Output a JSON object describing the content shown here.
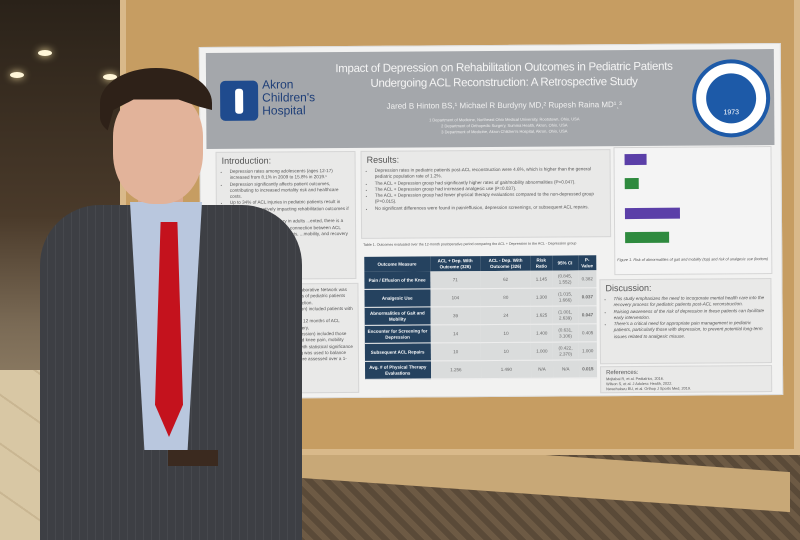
{
  "poster": {
    "title_line1": "Impact of Depression on Rehabilitation Outcomes in Pediatric Patients",
    "title_line2": "Undergoing ACL Reconstruction: A Retrospective Study",
    "authors": "Jared B Hinton BS,¹ Michael R Burdyny MD,² Rupesh Raina MD¹ˎ³",
    "affiliations": [
      "1 Department of Medicine, Northeast Ohio Medical University, Rootstown, Ohio, USA",
      "2 Department of Orthopedic Surgery, Summa Health, Akron, Ohio, USA",
      "3 Department of Medicine, Akron Children's Hospital, Akron, Ohio, USA"
    ],
    "logo_left": "Akron Children's Hospital",
    "logo_right": "NORTHEAST OHIO MEDICAL UNIVERSITY 1973",
    "seal_year": "1973",
    "introduction": {
      "heading": "Introduction:",
      "bullets": [
        "Depression rates among adolescents (ages 12-17) increased from 8.1% in 2009 to 15.8% in 2019.¹",
        "Depression significantly affects patient outcomes, contributing to increased mortality risk and healthcare costs.",
        "Up to 34% of ACL injuries in pediatric patients result in depression, negatively impacting rehabilitation outcomes if left unaddressed.²",
        "...of depression on recovery in adults ...ented, there is a lack of research in ...ates the connection between ACL ...depression in pediatric patients, ...mobility, and recovery outcomes."
      ]
    },
    "methods_fragments": [
      "Collaborative Network was",
      "...orts of pediatric patients",
      "...truction.",
      "...ision) included patients with a",
      "...ter 12 months of ACL surgery,",
      "...pression) included those",
      "...ded knee pain, mobility",
      "..., with statistical significance",
      "...ing was used to balance",
      "...were assessed over a 1-year"
    ],
    "results": {
      "heading": "Results:",
      "bullets": [
        "Depression rates in pediatric patients post-ACL reconstruction were 4.6%, which is higher than the general pediatric population rate of 1.2%.",
        "The ACL + Depression group had significantly higher rates of gait/mobility abnormalities (P=0.047).",
        "The ACL + Depression group had increased analgesic use (P=0.037).",
        "The ACL + Depression group had fewer physical therapy evaluations compared to the non-depressed group (P=0.015).",
        "No significant differences were found in pain/effusion, depression screenings, or subsequent ACL repairs."
      ]
    },
    "table": {
      "caption": "Table 1. Outcomes evaluated over the 12-month postoperative period comparing the ACL + Depression to the ACL - Depression group",
      "headers": [
        "Outcome Measure",
        "ACL + Dep. With Outcome (326)",
        "ACL - Dep. With Outcome (326)",
        "Risk Ratio",
        "95% CI",
        "P-Value"
      ],
      "rows": [
        [
          "Pain / Effusion of the Knee",
          "71",
          "62",
          "1.145",
          "(0.845, 1.552)",
          "0.382"
        ],
        [
          "Analgesic Use",
          "104",
          "80",
          "1.300",
          "(1.015, 1.666)",
          "0.037"
        ],
        [
          "Abnormalities of Gait and Mobility",
          "39",
          "24",
          "1.625",
          "(1.001, 2.639)",
          "0.047"
        ],
        [
          "Encounter for Screening for Depression",
          "14",
          "10",
          "1.400",
          "(0.631, 3.106)",
          "0.405"
        ],
        [
          "Subsequent ACL Repairs",
          "10",
          "10",
          "1.000",
          "(0.422, 2.370)",
          "1.000"
        ],
        [
          "Avg. # of Physical Therapy Evaluations",
          "1.256",
          "1.490",
          "N/A",
          "N/A",
          "0.015"
        ]
      ]
    },
    "figure": {
      "caption": "Figure 1. Risk of abnormalities of gait and mobility (top) and risk of analgesic use (bottom)",
      "colors": [
        "#5b3fa8",
        "#2e8a3e"
      ]
    },
    "discussion": {
      "heading": "Discussion:",
      "bullets": [
        "This study emphasizes the need to incorporate mental health care into the recovery process for pediatric patients post-ACL reconstruction.",
        "Raising awareness of the risk of depression in these patients can facilitate early intervention.",
        "There's a critical need for appropriate pain management in pediatric patients, particularly those with depression, to prevent potential long-term issues related to analgesic misuse."
      ]
    },
    "references": {
      "heading": "References:",
      "items": [
        "Mojtabai R, et al. Pediatrics, 2016.",
        "Wilson S, et al. J Adolesc Health, 2022.",
        "Nwachukwu BU, et al. Orthop J Sports Med, 2019."
      ]
    }
  }
}
